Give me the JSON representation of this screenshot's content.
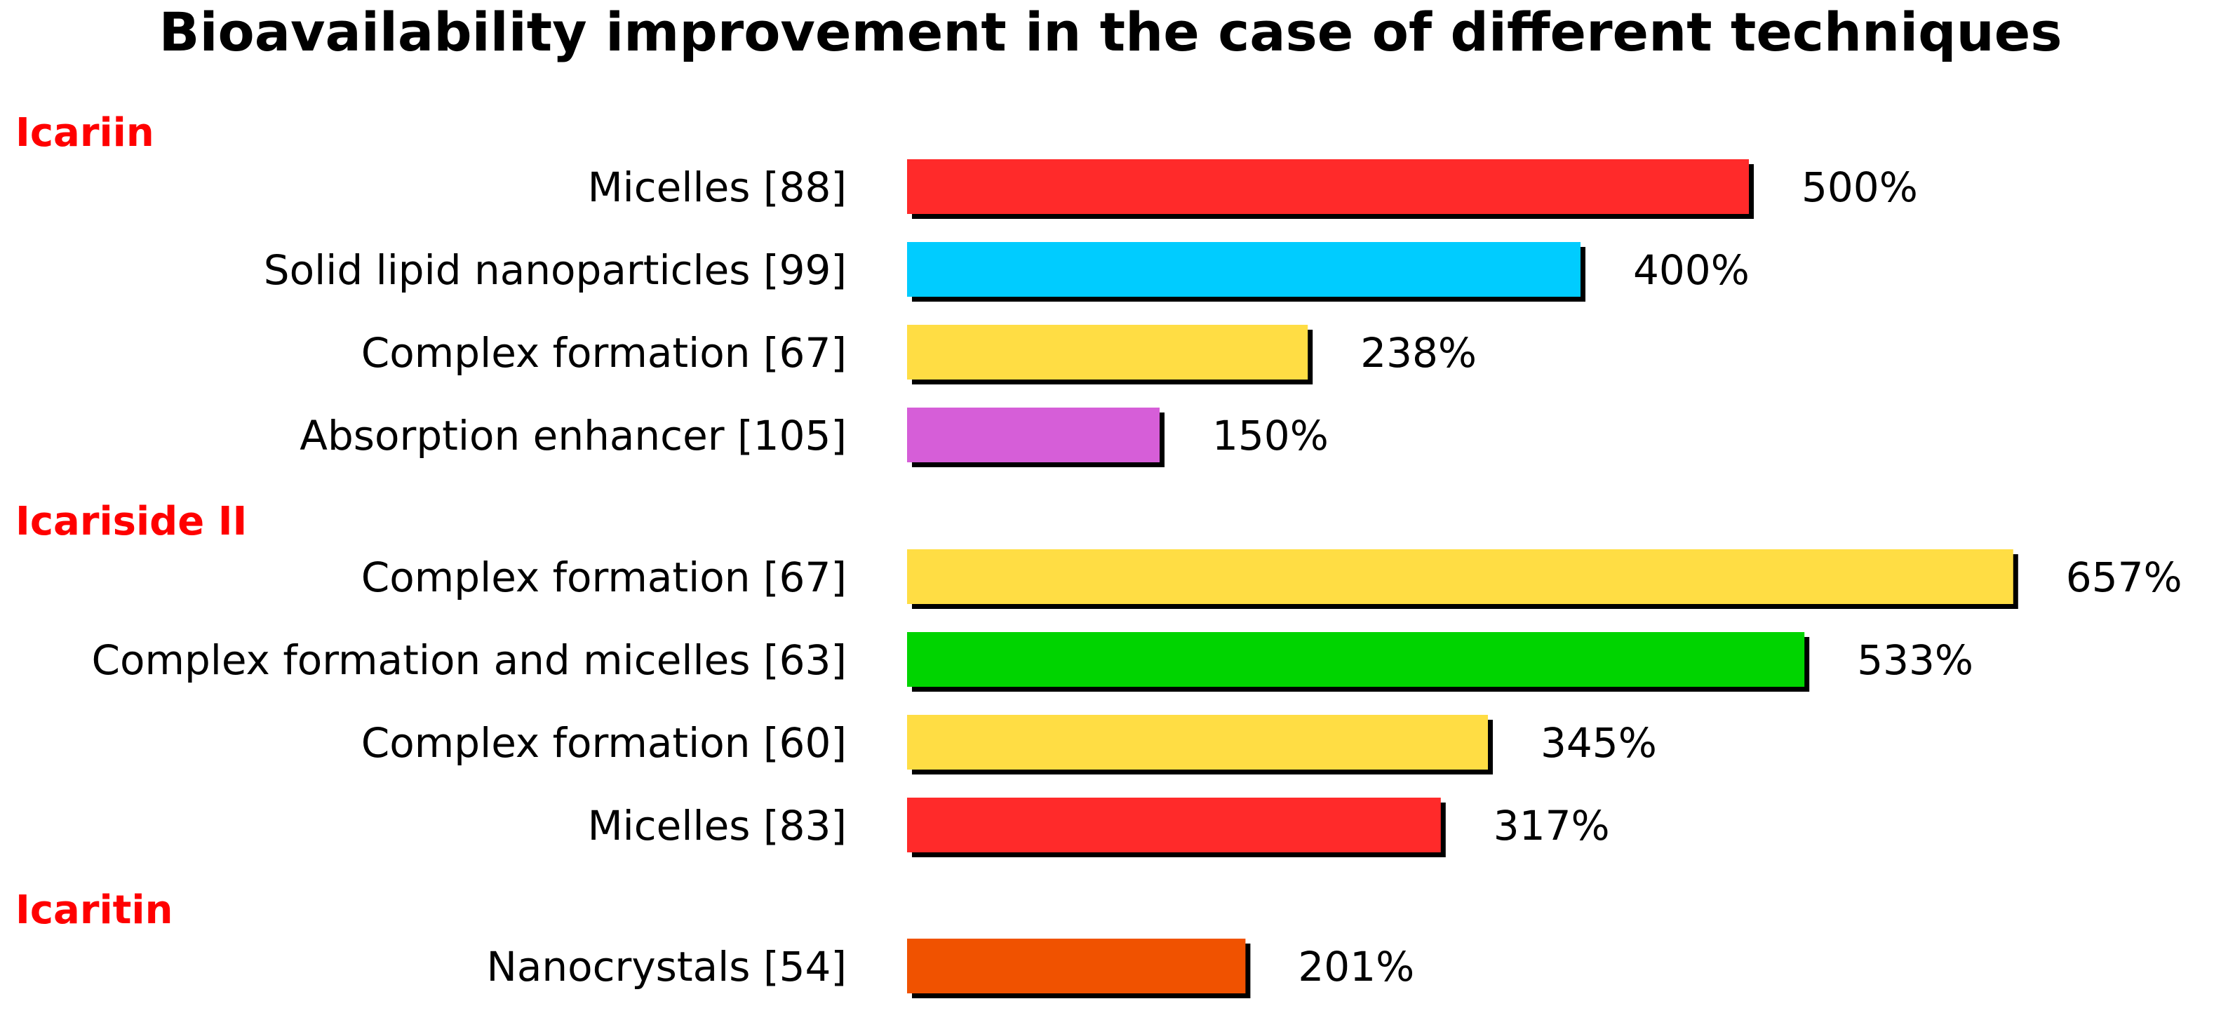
{
  "chart_data": {
    "type": "bar",
    "orientation": "horizontal",
    "title": "Bioavailability improvement in the case of different techniques",
    "xlabel": "",
    "ylabel": "",
    "xlim": [
      0,
      657
    ],
    "grid": false,
    "legend": "none",
    "group_color": "#ff0000",
    "shadow_color": "#000000",
    "groups": [
      {
        "name": "Icariin",
        "items": [
          {
            "label": "Micelles [88]",
            "value": 500,
            "display": "500%",
            "color": "#ff2a2a"
          },
          {
            "label": "Solid lipid nanoparticles [99]",
            "value": 400,
            "display": "400%",
            "color": "#00ccff"
          },
          {
            "label": "Complex formation [67]",
            "value": 238,
            "display": "238%",
            "color": "#ffdd44"
          },
          {
            "label": "Absorption enhancer [105]",
            "value": 150,
            "display": "150%",
            "color": "#d65ed8"
          }
        ]
      },
      {
        "name": "Icariside II",
        "items": [
          {
            "label": "Complex formation [67]",
            "value": 657,
            "display": "657%",
            "color": "#ffdd44"
          },
          {
            "label": "Complex formation and micelles [63]",
            "value": 533,
            "display": "533%",
            "color": "#00d400"
          },
          {
            "label": "Complex formation [60]",
            "value": 345,
            "display": "345%",
            "color": "#ffdd44"
          },
          {
            "label": "Micelles [83]",
            "value": 317,
            "display": "317%",
            "color": "#ff2a2a"
          }
        ]
      },
      {
        "name": "Icaritin",
        "items": [
          {
            "label": "Nanocrystals [54]",
            "value": 201,
            "display": "201%",
            "color": "#f05200"
          }
        ]
      }
    ]
  }
}
